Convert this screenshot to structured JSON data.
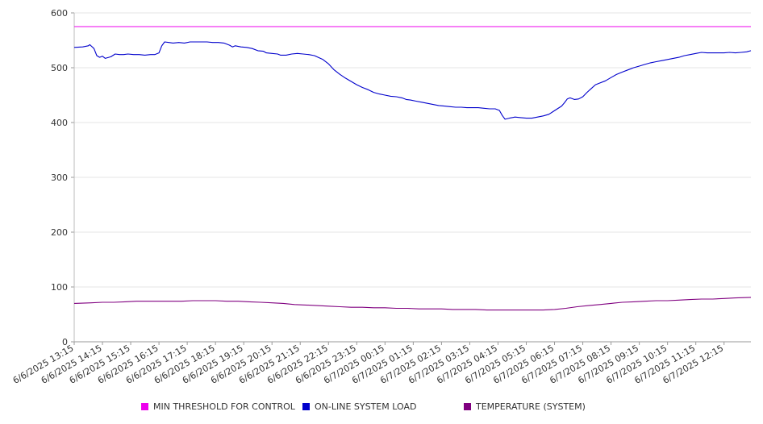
{
  "chart_data": {
    "type": "line",
    "title": "",
    "xlabel": "",
    "ylabel": "",
    "ylim": [
      0,
      600
    ],
    "yticks": [
      0,
      100,
      200,
      300,
      400,
      500,
      600
    ],
    "grid": true,
    "legend_position": "bottom",
    "x": [
      "6/6/2025 13:15",
      "6/6/2025 14:15",
      "6/6/2025 15:15",
      "6/6/2025 16:15",
      "6/6/2025 17:15",
      "6/6/2025 18:15",
      "6/6/2025 19:15",
      "6/6/2025 20:15",
      "6/6/2025 21:15",
      "6/6/2025 22:15",
      "6/6/2025 23:15",
      "6/7/2025 00:15",
      "6/7/2025 01:15",
      "6/7/2025 02:15",
      "6/7/2025 03:15",
      "6/7/2025 04:15",
      "6/7/2025 05:15",
      "6/7/2025 06:15",
      "6/7/2025 07:15",
      "6/7/2025 08:15",
      "6/7/2025 09:15",
      "6/7/2025 10:15",
      "6/7/2025 11:15",
      "6/7/2025 12:15"
    ],
    "series": [
      {
        "name": "MIN THRESHOLD FOR CONTROL",
        "color": "#ee00ee",
        "points": [
          [
            0,
            575
          ],
          [
            23.95,
            575
          ]
        ]
      },
      {
        "name": "ON-LINE SYSTEM LOAD",
        "color": "#0000cc",
        "points": [
          [
            0,
            537
          ],
          [
            0.3,
            538
          ],
          [
            0.5,
            540
          ],
          [
            0.55,
            542
          ],
          [
            0.7,
            535
          ],
          [
            0.8,
            522
          ],
          [
            0.9,
            519
          ],
          [
            1.0,
            521
          ],
          [
            1.1,
            517
          ],
          [
            1.3,
            520
          ],
          [
            1.45,
            525
          ],
          [
            1.6,
            524
          ],
          [
            1.75,
            524
          ],
          [
            1.9,
            525
          ],
          [
            2.1,
            524
          ],
          [
            2.3,
            524
          ],
          [
            2.5,
            523
          ],
          [
            2.7,
            524
          ],
          [
            2.85,
            524
          ],
          [
            3.0,
            527
          ],
          [
            3.1,
            540
          ],
          [
            3.2,
            547
          ],
          [
            3.35,
            546
          ],
          [
            3.5,
            545
          ],
          [
            3.7,
            546
          ],
          [
            3.9,
            545
          ],
          [
            4.1,
            547
          ],
          [
            4.3,
            547
          ],
          [
            4.5,
            547
          ],
          [
            4.7,
            547
          ],
          [
            4.9,
            546
          ],
          [
            5.1,
            546
          ],
          [
            5.3,
            545
          ],
          [
            5.5,
            541
          ],
          [
            5.6,
            538
          ],
          [
            5.7,
            540
          ],
          [
            5.9,
            538
          ],
          [
            6.1,
            537
          ],
          [
            6.3,
            535
          ],
          [
            6.5,
            531
          ],
          [
            6.7,
            530
          ],
          [
            6.8,
            527
          ],
          [
            7.0,
            526
          ],
          [
            7.2,
            525
          ],
          [
            7.3,
            523
          ],
          [
            7.5,
            523
          ],
          [
            7.7,
            525
          ],
          [
            7.9,
            526
          ],
          [
            8.1,
            525
          ],
          [
            8.3,
            524
          ],
          [
            8.5,
            522
          ],
          [
            8.8,
            515
          ],
          [
            9.0,
            507
          ],
          [
            9.2,
            496
          ],
          [
            9.4,
            488
          ],
          [
            9.6,
            481
          ],
          [
            9.8,
            475
          ],
          [
            10.0,
            469
          ],
          [
            10.2,
            464
          ],
          [
            10.4,
            460
          ],
          [
            10.6,
            455
          ],
          [
            10.8,
            452
          ],
          [
            11.0,
            450
          ],
          [
            11.2,
            448
          ],
          [
            11.4,
            447
          ],
          [
            11.6,
            445
          ],
          [
            11.75,
            442
          ],
          [
            11.9,
            441
          ],
          [
            12.1,
            439
          ],
          [
            12.3,
            437
          ],
          [
            12.5,
            435
          ],
          [
            12.7,
            433
          ],
          [
            12.9,
            431
          ],
          [
            13.1,
            430
          ],
          [
            13.3,
            429
          ],
          [
            13.5,
            428
          ],
          [
            13.7,
            428
          ],
          [
            13.9,
            427
          ],
          [
            14.1,
            427
          ],
          [
            14.3,
            427
          ],
          [
            14.5,
            426
          ],
          [
            14.7,
            425
          ],
          [
            14.9,
            425
          ],
          [
            15.05,
            422
          ],
          [
            15.15,
            413
          ],
          [
            15.25,
            406
          ],
          [
            15.4,
            408
          ],
          [
            15.6,
            410
          ],
          [
            15.8,
            409
          ],
          [
            16.0,
            408
          ],
          [
            16.2,
            408
          ],
          [
            16.4,
            410
          ],
          [
            16.6,
            412
          ],
          [
            16.8,
            415
          ],
          [
            16.95,
            420
          ],
          [
            17.1,
            425
          ],
          [
            17.25,
            430
          ],
          [
            17.35,
            436
          ],
          [
            17.45,
            443
          ],
          [
            17.55,
            445
          ],
          [
            17.7,
            442
          ],
          [
            17.85,
            443
          ],
          [
            18.0,
            447
          ],
          [
            18.15,
            455
          ],
          [
            18.3,
            462
          ],
          [
            18.45,
            469
          ],
          [
            18.6,
            472
          ],
          [
            18.8,
            476
          ],
          [
            19.0,
            482
          ],
          [
            19.2,
            488
          ],
          [
            19.4,
            492
          ],
          [
            19.6,
            496
          ],
          [
            19.8,
            500
          ],
          [
            20.0,
            503
          ],
          [
            20.2,
            506
          ],
          [
            20.4,
            509
          ],
          [
            20.6,
            511
          ],
          [
            20.8,
            513
          ],
          [
            21.0,
            515
          ],
          [
            21.2,
            517
          ],
          [
            21.4,
            519
          ],
          [
            21.6,
            522
          ],
          [
            21.8,
            524
          ],
          [
            22.0,
            526
          ],
          [
            22.2,
            528
          ],
          [
            22.4,
            527
          ],
          [
            22.6,
            527
          ],
          [
            22.8,
            527
          ],
          [
            23.0,
            527
          ],
          [
            23.2,
            528
          ],
          [
            23.4,
            527
          ],
          [
            23.6,
            528
          ],
          [
            23.8,
            529
          ],
          [
            23.95,
            531
          ]
        ]
      },
      {
        "name": "TEMPERATURE (SYSTEM)",
        "color": "#800080",
        "points": [
          [
            0,
            70
          ],
          [
            0.6,
            71
          ],
          [
            1.0,
            72
          ],
          [
            1.4,
            72
          ],
          [
            1.8,
            73
          ],
          [
            2.2,
            74
          ],
          [
            2.6,
            74
          ],
          [
            3.0,
            74
          ],
          [
            3.4,
            74
          ],
          [
            3.8,
            74
          ],
          [
            4.2,
            75
          ],
          [
            4.6,
            75
          ],
          [
            5.0,
            75
          ],
          [
            5.4,
            74
          ],
          [
            5.8,
            74
          ],
          [
            6.2,
            73
          ],
          [
            6.6,
            72
          ],
          [
            7.0,
            71
          ],
          [
            7.4,
            70
          ],
          [
            7.8,
            68
          ],
          [
            8.2,
            67
          ],
          [
            8.6,
            66
          ],
          [
            9.0,
            65
          ],
          [
            9.4,
            64
          ],
          [
            9.8,
            63
          ],
          [
            10.2,
            63
          ],
          [
            10.6,
            62
          ],
          [
            11.0,
            62
          ],
          [
            11.4,
            61
          ],
          [
            11.8,
            61
          ],
          [
            12.2,
            60
          ],
          [
            12.6,
            60
          ],
          [
            13.0,
            60
          ],
          [
            13.4,
            59
          ],
          [
            13.8,
            59
          ],
          [
            14.2,
            59
          ],
          [
            14.6,
            58
          ],
          [
            15.0,
            58
          ],
          [
            15.4,
            58
          ],
          [
            15.8,
            58
          ],
          [
            16.2,
            58
          ],
          [
            16.6,
            58
          ],
          [
            17.0,
            59
          ],
          [
            17.4,
            61
          ],
          [
            17.8,
            64
          ],
          [
            18.2,
            66
          ],
          [
            18.6,
            68
          ],
          [
            19.0,
            70
          ],
          [
            19.4,
            72
          ],
          [
            19.8,
            73
          ],
          [
            20.2,
            74
          ],
          [
            20.6,
            75
          ],
          [
            21.0,
            75
          ],
          [
            21.4,
            76
          ],
          [
            21.8,
            77
          ],
          [
            22.2,
            78
          ],
          [
            22.6,
            78
          ],
          [
            23.0,
            79
          ],
          [
            23.4,
            80
          ],
          [
            23.95,
            81
          ]
        ]
      }
    ]
  }
}
